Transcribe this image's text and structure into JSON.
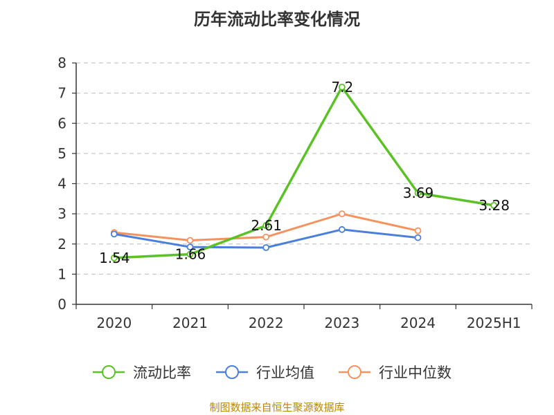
{
  "title": "历年流动比率变化情况",
  "source": "制图数据来自恒生聚源数据库",
  "chart_data": {
    "type": "line",
    "categories": [
      "2020",
      "2021",
      "2022",
      "2023",
      "2024",
      "2025H1"
    ],
    "ylim": [
      0,
      8
    ],
    "yticks": [
      "0",
      "1",
      "2",
      "3",
      "4",
      "5",
      "6",
      "7",
      "8"
    ],
    "grid": true,
    "legend_position": "bottom",
    "series": [
      {
        "name": "流动比率",
        "color": "#5bc225",
        "values": [
          1.54,
          1.66,
          2.61,
          7.2,
          3.69,
          3.28
        ],
        "labels": [
          "1.54",
          "1.66",
          "2.61",
          "7.2",
          "3.69",
          "3.28"
        ]
      },
      {
        "name": "行业均值",
        "color": "#4a7fdb",
        "values": [
          2.33,
          1.9,
          1.88,
          2.48,
          2.21,
          null
        ]
      },
      {
        "name": "行业中位数",
        "color": "#f5925e",
        "values": [
          2.38,
          2.12,
          2.23,
          3.0,
          2.44,
          null
        ]
      }
    ]
  }
}
